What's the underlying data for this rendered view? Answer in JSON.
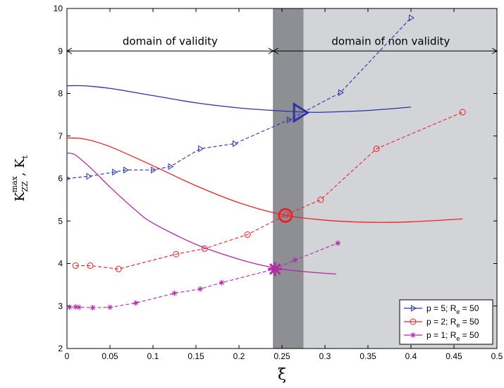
{
  "chart_data": {
    "type": "line",
    "xlabel": "ξ",
    "ylabel": {
      "main": "K",
      "sub": "ZZ",
      "sup": "max",
      "sep": ", K",
      "sub2": "t"
    },
    "xlim": [
      0,
      0.5
    ],
    "ylim": [
      2,
      10
    ],
    "xticks": [
      0,
      0.05,
      0.1,
      0.15,
      0.2,
      0.25,
      0.3,
      0.35,
      0.4,
      0.45,
      0.5
    ],
    "xtick_labels": [
      "0",
      "0.05",
      "0.1",
      "0.15",
      "0.2",
      "0.25",
      "0.3",
      "0.35",
      "0.4",
      "0.45",
      "0.5"
    ],
    "yticks": [
      2,
      3,
      4,
      5,
      6,
      7,
      8,
      9,
      10
    ],
    "ytick_labels": [
      "2",
      "3",
      "4",
      "5",
      "6",
      "7",
      "8",
      "9",
      "10"
    ],
    "grid": false,
    "regions": {
      "validity_label": "domain of validity",
      "nonvalidity_label": "domain of non validity",
      "arrow_y": 9,
      "boundary_x": 0.24,
      "dark_band": [
        0.24,
        0.275
      ],
      "light_band": [
        0.275,
        0.5
      ]
    },
    "series": [
      {
        "name": "p = 5; R_e = 50",
        "legend": {
          "prefix": "p = 5; R",
          "sub": "e",
          "suffix": " = 50"
        },
        "color": "#2b35a6",
        "marker": "triangle-right",
        "dashed": [
          [
            0,
            6.0
          ],
          [
            0.025,
            6.05
          ],
          [
            0.055,
            6.15
          ],
          [
            0.068,
            6.2
          ],
          [
            0.1,
            6.2
          ],
          [
            0.12,
            6.28
          ],
          [
            0.155,
            6.7
          ],
          [
            0.195,
            6.82
          ],
          [
            0.258,
            7.38
          ],
          [
            0.318,
            8.02
          ],
          [
            0.4,
            9.78
          ]
        ],
        "solid": [
          [
            0,
            8.18
          ],
          [
            0.02,
            8.18
          ],
          [
            0.05,
            8.12
          ],
          [
            0.1,
            7.95
          ],
          [
            0.15,
            7.78
          ],
          [
            0.2,
            7.66
          ],
          [
            0.24,
            7.6
          ],
          [
            0.28,
            7.56
          ],
          [
            0.3,
            7.56
          ],
          [
            0.35,
            7.6
          ],
          [
            0.4,
            7.68
          ]
        ],
        "intersection": [
          0.27,
          7.55
        ]
      },
      {
        "name": "p = 2; R_e = 50",
        "legend": {
          "prefix": "p = 2; R",
          "sub": "e",
          "suffix": " = 50"
        },
        "color": "#e8242a",
        "marker": "circle",
        "dashed": [
          [
            0.01,
            3.95
          ],
          [
            0.027,
            3.95
          ],
          [
            0.06,
            3.87
          ],
          [
            0.127,
            4.22
          ],
          [
            0.16,
            4.35
          ],
          [
            0.21,
            4.68
          ],
          [
            0.255,
            5.15
          ],
          [
            0.295,
            5.5
          ],
          [
            0.36,
            6.7
          ],
          [
            0.46,
            7.56
          ]
        ],
        "solid": [
          [
            0,
            6.95
          ],
          [
            0.02,
            6.93
          ],
          [
            0.05,
            6.75
          ],
          [
            0.1,
            6.3
          ],
          [
            0.15,
            5.83
          ],
          [
            0.2,
            5.43
          ],
          [
            0.25,
            5.15
          ],
          [
            0.3,
            5.02
          ],
          [
            0.35,
            4.97
          ],
          [
            0.4,
            4.98
          ],
          [
            0.46,
            5.05
          ]
        ],
        "intersection": [
          0.254,
          5.13
        ]
      },
      {
        "name": "p = 1; R_e = 50",
        "legend": {
          "prefix": "p = 1; R",
          "sub": "e",
          "suffix": " = 50"
        },
        "color": "#b02aa4",
        "marker": "asterisk",
        "dashed": [
          [
            0.003,
            2.97
          ],
          [
            0.01,
            2.98
          ],
          [
            0.014,
            2.97
          ],
          [
            0.03,
            2.96
          ],
          [
            0.05,
            2.97
          ],
          [
            0.08,
            3.07
          ],
          [
            0.125,
            3.3
          ],
          [
            0.155,
            3.4
          ],
          [
            0.18,
            3.55
          ],
          [
            0.24,
            3.86
          ],
          [
            0.265,
            4.08
          ],
          [
            0.315,
            4.48
          ]
        ],
        "solid": [
          [
            0,
            6.6
          ],
          [
            0.01,
            6.55
          ],
          [
            0.03,
            6.2
          ],
          [
            0.05,
            5.8
          ],
          [
            0.08,
            5.25
          ],
          [
            0.1,
            4.95
          ],
          [
            0.15,
            4.45
          ],
          [
            0.2,
            4.1
          ],
          [
            0.24,
            3.9
          ],
          [
            0.27,
            3.82
          ],
          [
            0.313,
            3.75
          ]
        ],
        "intersection": [
          0.242,
          3.87
        ]
      }
    ]
  }
}
